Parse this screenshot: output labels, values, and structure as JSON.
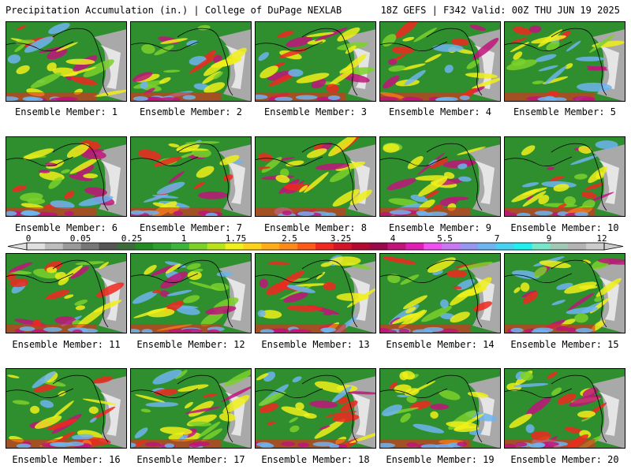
{
  "header": {
    "left": "Precipitation Accumulation (in.) | College of DuPage NEXLAB",
    "right": "18Z GEFS | F342 Valid: 00Z THU JUN 19 2025"
  },
  "panels": [
    {
      "label": "Ensemble Member: 1"
    },
    {
      "label": "Ensemble Member: 2"
    },
    {
      "label": "Ensemble Member: 3"
    },
    {
      "label": "Ensemble Member: 4"
    },
    {
      "label": "Ensemble Member: 5"
    },
    {
      "label": "Ensemble Member: 6"
    },
    {
      "label": "Ensemble Member: 7"
    },
    {
      "label": "Ensemble Member: 8"
    },
    {
      "label": "Ensemble Member: 9"
    },
    {
      "label": "Ensemble Member: 10"
    },
    {
      "label": "Ensemble Member: 11"
    },
    {
      "label": "Ensemble Member: 12"
    },
    {
      "label": "Ensemble Member: 13"
    },
    {
      "label": "Ensemble Member: 14"
    },
    {
      "label": "Ensemble Member: 15"
    },
    {
      "label": "Ensemble Member: 16"
    },
    {
      "label": "Ensemble Member: 17"
    },
    {
      "label": "Ensemble Member: 18"
    },
    {
      "label": "Ensemble Member: 19"
    },
    {
      "label": "Ensemble Member: 20"
    }
  ],
  "colorbar": {
    "tick_labels": [
      "0",
      "0.05",
      "0.25",
      "1",
      "1.75",
      "2.5",
      "3.25",
      "4",
      "5.5",
      "7",
      "9",
      "12"
    ],
    "colors": [
      "#e0e0e0",
      "#bdbdbd",
      "#9a9a9a",
      "#777777",
      "#555555",
      "#3c6b3c",
      "#228b22",
      "#2e9e2e",
      "#3cb43c",
      "#7ad12a",
      "#b8e21a",
      "#f0f01a",
      "#ffd21a",
      "#ffae1a",
      "#ff8a1a",
      "#ff5a1a",
      "#f0281e",
      "#d41428",
      "#b40a30",
      "#9a0a4a",
      "#c0147a",
      "#e01eb4",
      "#f050f0",
      "#c878f0",
      "#9696f0",
      "#6eb4f0",
      "#46d2f0",
      "#1ef0f0",
      "#78e6c8",
      "#a0c8b4",
      "#b4b4b4",
      "#cccccc"
    ]
  },
  "legend_colors": {
    "ocean_base": "#2f8f2f",
    "land_dry": "#a9a9a9",
    "snow": "#f0f0f0",
    "light": "#7ad12a",
    "moderate": "#f0f01a",
    "heavy": "#f0281e",
    "very_heavy": "#c0147a",
    "extreme": "#6eb4f0",
    "coast": "#000000"
  }
}
